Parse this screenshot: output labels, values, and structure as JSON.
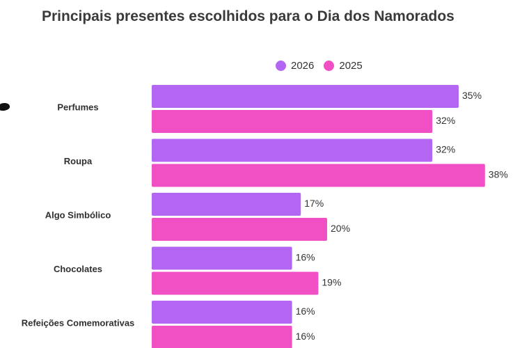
{
  "chart_data": {
    "type": "bar",
    "orientation": "horizontal",
    "title": "Principais presentes escolhidos para o Dia dos Namorados",
    "categories": [
      "Perfumes",
      "Roupa",
      "Algo Simbólico",
      "Chocolates",
      "Refeições Comemorativas"
    ],
    "series": [
      {
        "name": "2026",
        "color": "#b366f2",
        "values": [
          35,
          32,
          17,
          16,
          16
        ],
        "labels": [
          "35%",
          "32%",
          "17%",
          "16%",
          "16%"
        ]
      },
      {
        "name": "2025",
        "color": "#f14fc4",
        "values": [
          32,
          38,
          20,
          19,
          16
        ],
        "labels": [
          "32%",
          "38%",
          "20%",
          "19%",
          "16%"
        ]
      }
    ],
    "value_unit": "%",
    "xlim": [
      0,
      38
    ],
    "grid": false,
    "legend_position": "top-right"
  }
}
